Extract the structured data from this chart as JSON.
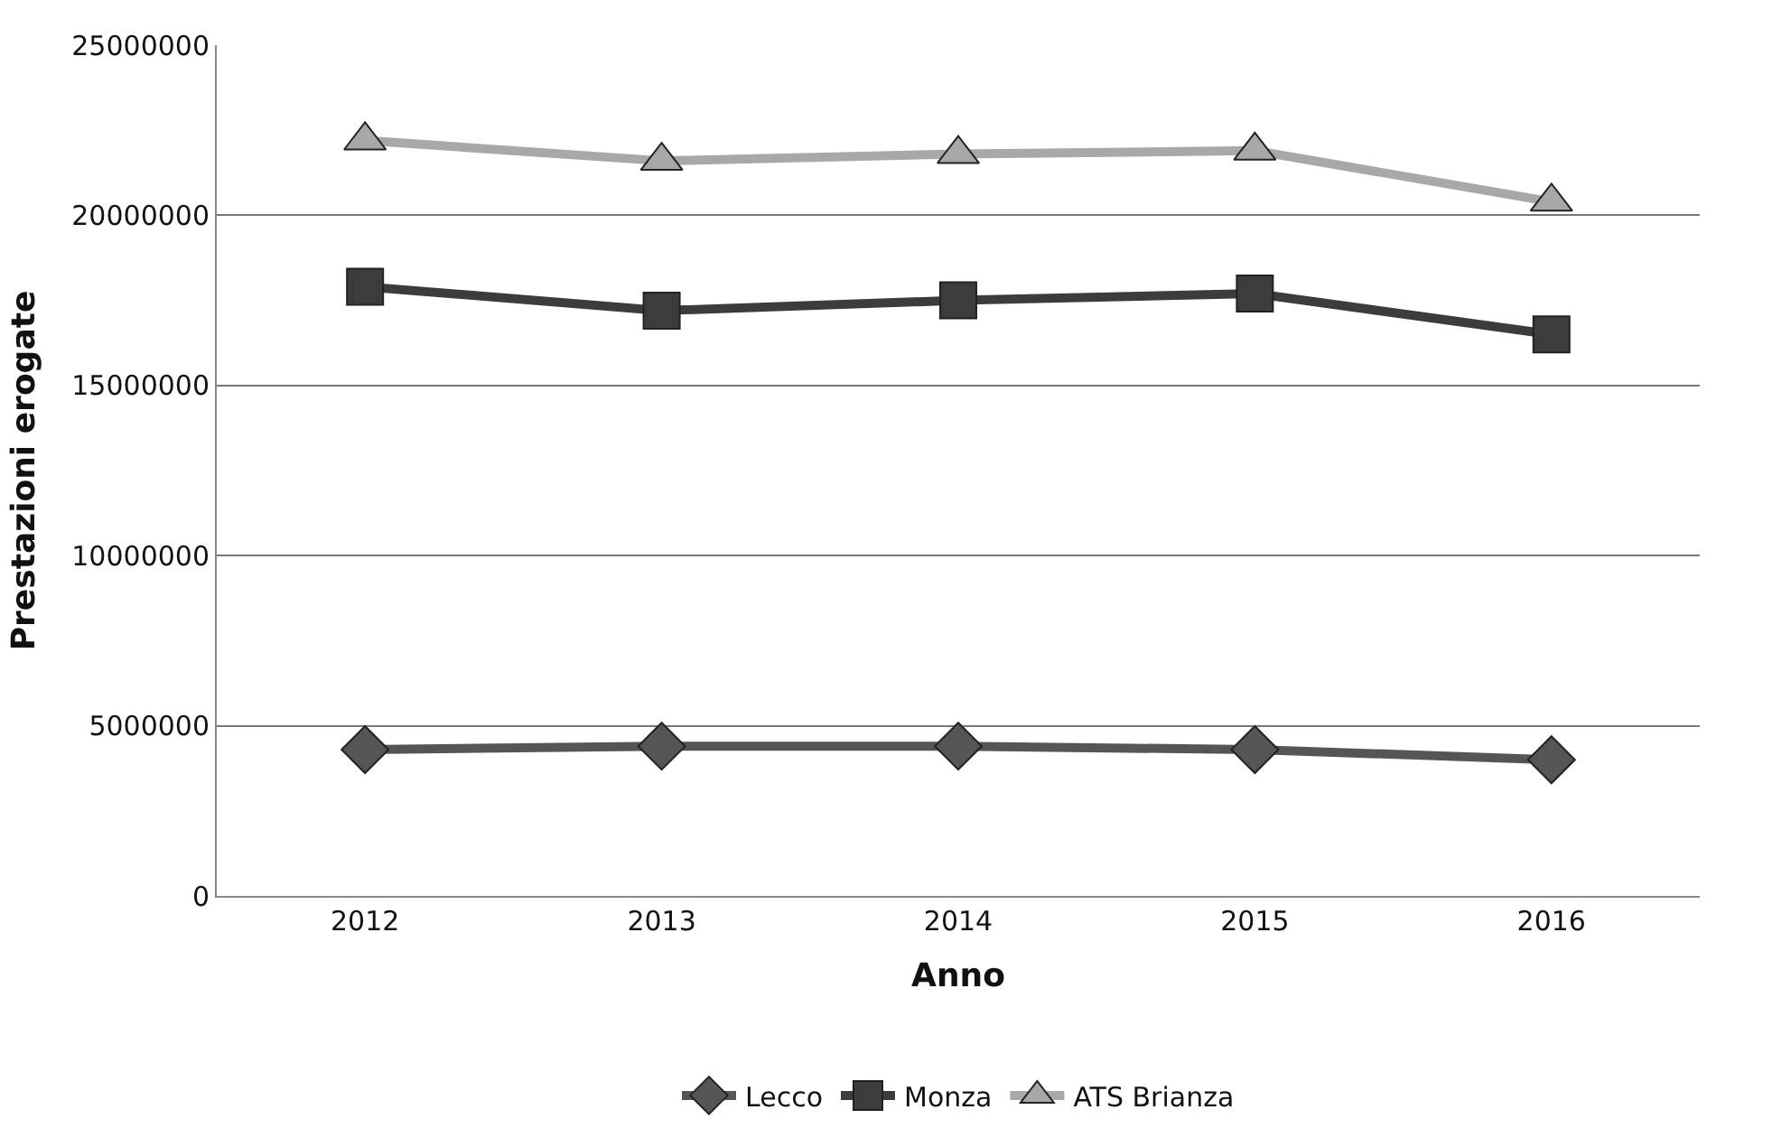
{
  "chart_data": {
    "type": "line",
    "xlabel": "Anno",
    "ylabel": "Prestazioni erogate",
    "categories": [
      "2012",
      "2013",
      "2014",
      "2015",
      "2016"
    ],
    "series": [
      {
        "name": "Lecco",
        "color": "#555555",
        "marker": "diamond",
        "values": [
          4300000,
          4400000,
          4400000,
          4300000,
          4000000
        ]
      },
      {
        "name": "Monza",
        "color": "#3c3c3c",
        "marker": "square",
        "values": [
          17900000,
          17200000,
          17500000,
          17700000,
          16500000
        ]
      },
      {
        "name": "ATS Brianza",
        "color": "#a8a8a8",
        "marker": "triangle",
        "values": [
          22200000,
          21600000,
          21800000,
          21900000,
          20400000
        ]
      }
    ],
    "ylim": [
      0,
      25000000
    ],
    "yticks": [
      0,
      5000000,
      10000000,
      15000000,
      20000000,
      25000000
    ],
    "grid": "y",
    "legend": "bottom",
    "line_style": "solid"
  }
}
